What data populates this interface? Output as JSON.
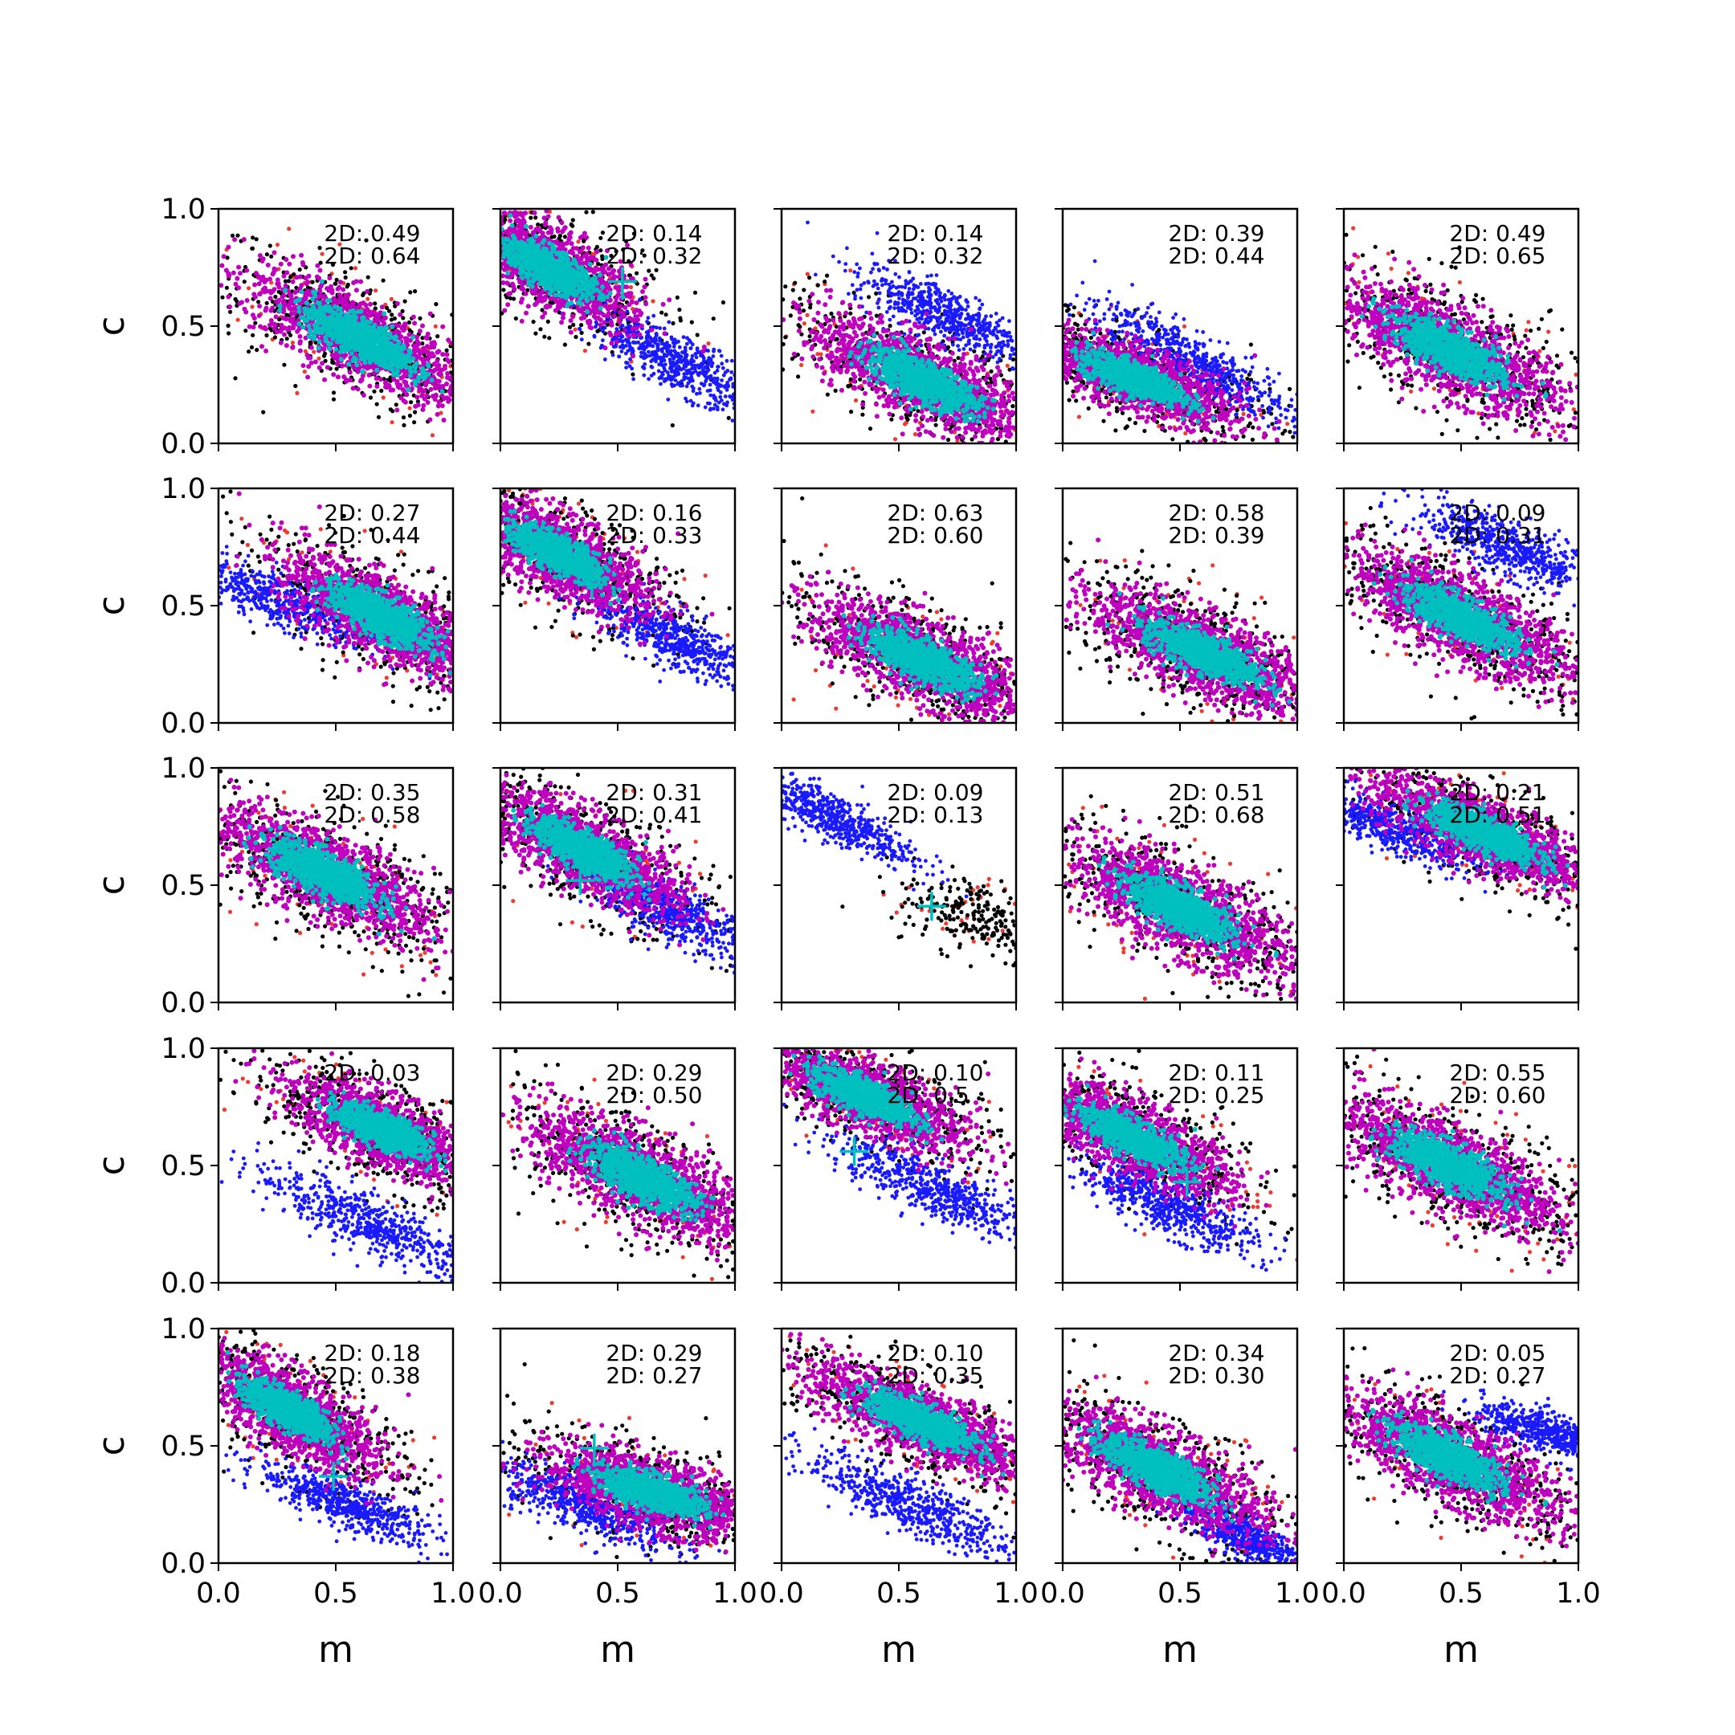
{
  "chart_data": {
    "type": "scatter",
    "layout": {
      "rows": 5,
      "cols": 5,
      "shared_x": true,
      "shared_y": true
    },
    "xlabel": "m",
    "ylabel": "c",
    "xlim": [
      0.0,
      1.0
    ],
    "ylim": [
      0.0,
      1.0
    ],
    "xticks": [
      "0.0",
      "0.5",
      "1.0"
    ],
    "yticks": [
      "0.0",
      "0.5",
      "1.0"
    ],
    "grid": false,
    "legend": false,
    "series_colors": {
      "outer_red": "#f03a2e",
      "outer_black": "#000000",
      "mid_magenta": "#bf00bf",
      "core_cyan": "#00bfbf",
      "alt_blue": "#1a1aff",
      "marker": "#00bfbf"
    },
    "panels": [
      {
        "label1": "2D: 0.49",
        "label2": "2D: 0.64",
        "main": {
          "cx": 0.6,
          "cy": 0.45,
          "slope": -0.52,
          "sa": 0.55,
          "sb": 0.17
        },
        "blue": null,
        "marker": null
      },
      {
        "label1": "2D: 0.14",
        "label2": "2D: 0.32",
        "main": {
          "cx": 0.2,
          "cy": 0.75,
          "slope": -0.55,
          "sa": 0.45,
          "sb": 0.16
        },
        "blue": {
          "cx": 0.75,
          "cy": 0.35,
          "slope": -0.5,
          "sa": 0.3,
          "sb": 0.08
        },
        "marker": {
          "x": 0.52,
          "y": 0.69
        }
      },
      {
        "label1": "2D: 0.14",
        "label2": "2D: 0.32",
        "main": {
          "cx": 0.6,
          "cy": 0.27,
          "slope": -0.48,
          "sa": 0.55,
          "sb": 0.17
        },
        "blue": {
          "cx": 0.7,
          "cy": 0.55,
          "slope": -0.45,
          "sa": 0.3,
          "sb": 0.08
        },
        "marker": null
      },
      {
        "label1": "2D: 0.39",
        "label2": "2D: 0.44",
        "main": {
          "cx": 0.3,
          "cy": 0.28,
          "slope": -0.4,
          "sa": 0.5,
          "sb": 0.14
        },
        "blue": {
          "cx": 0.55,
          "cy": 0.35,
          "slope": -0.55,
          "sa": 0.35,
          "sb": 0.08
        },
        "marker": null
      },
      {
        "label1": "2D: 0.49",
        "label2": "2D: 0.65",
        "main": {
          "cx": 0.45,
          "cy": 0.4,
          "slope": -0.5,
          "sa": 0.55,
          "sb": 0.18
        },
        "blue": null,
        "marker": null
      },
      {
        "label1": "2D: 0.27",
        "label2": "2D: 0.44",
        "main": {
          "cx": 0.7,
          "cy": 0.45,
          "slope": -0.55,
          "sa": 0.5,
          "sb": 0.17
        },
        "blue": {
          "cx": 0.25,
          "cy": 0.53,
          "slope": -0.4,
          "sa": 0.35,
          "sb": 0.08
        },
        "marker": {
          "x": 0.48,
          "y": 0.57
        }
      },
      {
        "label1": "2D: 0.16",
        "label2": "2D: 0.33",
        "main": {
          "cx": 0.25,
          "cy": 0.72,
          "slope": -0.55,
          "sa": 0.45,
          "sb": 0.16
        },
        "blue": {
          "cx": 0.75,
          "cy": 0.35,
          "slope": -0.5,
          "sa": 0.3,
          "sb": 0.08
        },
        "marker": {
          "x": 0.39,
          "y": 0.59
        }
      },
      {
        "label1": "2D: 0.63",
        "label2": "2D: 0.60",
        "main": {
          "cx": 0.6,
          "cy": 0.27,
          "slope": -0.45,
          "sa": 0.55,
          "sb": 0.17
        },
        "blue": null,
        "marker": null
      },
      {
        "label1": "2D: 0.58",
        "label2": "2D: 0.39",
        "main": {
          "cx": 0.6,
          "cy": 0.3,
          "slope": -0.45,
          "sa": 0.55,
          "sb": 0.17
        },
        "blue": null,
        "marker": null
      },
      {
        "label1": "2D: 0.09",
        "label2": "2D: 0.31",
        "main": {
          "cx": 0.5,
          "cy": 0.45,
          "slope": -0.5,
          "sa": 0.55,
          "sb": 0.17
        },
        "blue": {
          "cx": 0.7,
          "cy": 0.75,
          "slope": -0.45,
          "sa": 0.3,
          "sb": 0.08
        },
        "marker": null
      },
      {
        "label1": "2D: 0.35",
        "label2": "2D: 0.58",
        "main": {
          "cx": 0.45,
          "cy": 0.55,
          "slope": -0.5,
          "sa": 0.55,
          "sb": 0.18
        },
        "blue": null,
        "marker": null
      },
      {
        "label1": "2D: 0.31",
        "label2": "2D: 0.41",
        "main": {
          "cx": 0.35,
          "cy": 0.65,
          "slope": -0.55,
          "sa": 0.5,
          "sb": 0.16
        },
        "blue": {
          "cx": 0.7,
          "cy": 0.4,
          "slope": -0.5,
          "sa": 0.3,
          "sb": 0.08
        },
        "marker": {
          "x": 0.34,
          "y": 0.52
        }
      },
      {
        "label1": "2D: 0.09",
        "label2": "2D: 0.13",
        "main": null,
        "blue": {
          "cx": 0.2,
          "cy": 0.8,
          "slope": -0.5,
          "sa": 0.3,
          "sb": 0.07
        },
        "black_cloud": {
          "cx": 0.82,
          "cy": 0.37,
          "slope": -0.3,
          "sa": 0.3,
          "sb": 0.15
        },
        "marker": {
          "x": 0.64,
          "y": 0.41
        }
      },
      {
        "label1": "2D: 0.51",
        "label2": "2D: 0.68",
        "main": {
          "cx": 0.5,
          "cy": 0.4,
          "slope": -0.5,
          "sa": 0.55,
          "sb": 0.18
        },
        "blue": null,
        "marker": null
      },
      {
        "label1": "2D: 0.21",
        "label2": "2D: 0.51",
        "main": {
          "cx": 0.6,
          "cy": 0.72,
          "slope": -0.45,
          "sa": 0.55,
          "sb": 0.15
        },
        "blue": {
          "cx": 0.2,
          "cy": 0.75,
          "slope": -0.4,
          "sa": 0.3,
          "sb": 0.07
        },
        "marker": null
      },
      {
        "label1": "2D: 0.03",
        "label2": "",
        "main": {
          "cx": 0.7,
          "cy": 0.65,
          "slope": -0.45,
          "sa": 0.45,
          "sb": 0.15
        },
        "blue": {
          "cx": 0.65,
          "cy": 0.25,
          "slope": -0.45,
          "sa": 0.4,
          "sb": 0.08
        },
        "marker": {
          "x": 0.59,
          "y": 0.7
        }
      },
      {
        "label1": "2D: 0.29",
        "label2": "2D: 0.50",
        "main": {
          "cx": 0.6,
          "cy": 0.45,
          "slope": -0.5,
          "sa": 0.55,
          "sb": 0.18
        },
        "blue": null,
        "marker": null
      },
      {
        "label1": "2D: 0.10",
        "label2": "2D: 0.5",
        "main": {
          "cx": 0.35,
          "cy": 0.8,
          "slope": -0.45,
          "sa": 0.5,
          "sb": 0.15
        },
        "blue": {
          "cx": 0.65,
          "cy": 0.4,
          "slope": -0.45,
          "sa": 0.35,
          "sb": 0.08
        },
        "marker": {
          "x": 0.31,
          "y": 0.56
        }
      },
      {
        "label1": "2D: 0.11",
        "label2": "2D: 0.25",
        "main": {
          "cx": 0.3,
          "cy": 0.62,
          "slope": -0.5,
          "sa": 0.5,
          "sb": 0.15
        },
        "blue": {
          "cx": 0.45,
          "cy": 0.33,
          "slope": -0.45,
          "sa": 0.3,
          "sb": 0.08
        },
        "marker": {
          "x": 0.53,
          "y": 0.43
        }
      },
      {
        "label1": "2D: 0.55",
        "label2": "2D: 0.60",
        "main": {
          "cx": 0.45,
          "cy": 0.5,
          "slope": -0.5,
          "sa": 0.55,
          "sb": 0.18
        },
        "blue": null,
        "marker": null
      },
      {
        "label1": "2D: 0.18",
        "label2": "2D: 0.38",
        "main": {
          "cx": 0.3,
          "cy": 0.65,
          "slope": -0.6,
          "sa": 0.45,
          "sb": 0.16
        },
        "blue": {
          "cx": 0.55,
          "cy": 0.25,
          "slope": -0.4,
          "sa": 0.3,
          "sb": 0.07
        },
        "marker": {
          "x": 0.49,
          "y": 0.37
        }
      },
      {
        "label1": "2D: 0.29",
        "label2": "2D: 0.27",
        "main": {
          "cx": 0.65,
          "cy": 0.3,
          "slope": -0.3,
          "sa": 0.5,
          "sb": 0.15
        },
        "blue": {
          "cx": 0.35,
          "cy": 0.25,
          "slope": -0.4,
          "sa": 0.3,
          "sb": 0.08
        },
        "marker": {
          "x": 0.4,
          "y": 0.49
        }
      },
      {
        "label1": "2D: 0.10",
        "label2": "2D: 0.35",
        "main": {
          "cx": 0.6,
          "cy": 0.6,
          "slope": -0.45,
          "sa": 0.55,
          "sb": 0.15
        },
        "blue": {
          "cx": 0.55,
          "cy": 0.25,
          "slope": -0.45,
          "sa": 0.35,
          "sb": 0.08
        },
        "marker": null
      },
      {
        "label1": "2D: 0.34",
        "label2": "2D: 0.30",
        "main": {
          "cx": 0.4,
          "cy": 0.4,
          "slope": -0.5,
          "sa": 0.55,
          "sb": 0.17
        },
        "blue": {
          "cx": 0.8,
          "cy": 0.1,
          "slope": -0.5,
          "sa": 0.25,
          "sb": 0.06
        },
        "marker": null
      },
      {
        "label1": "2D: 0.05",
        "label2": "2D: 0.27",
        "main": {
          "cx": 0.45,
          "cy": 0.45,
          "slope": -0.5,
          "sa": 0.55,
          "sb": 0.17
        },
        "blue": {
          "cx": 0.9,
          "cy": 0.55,
          "slope": -0.3,
          "sa": 0.25,
          "sb": 0.06
        },
        "marker": null
      }
    ]
  }
}
